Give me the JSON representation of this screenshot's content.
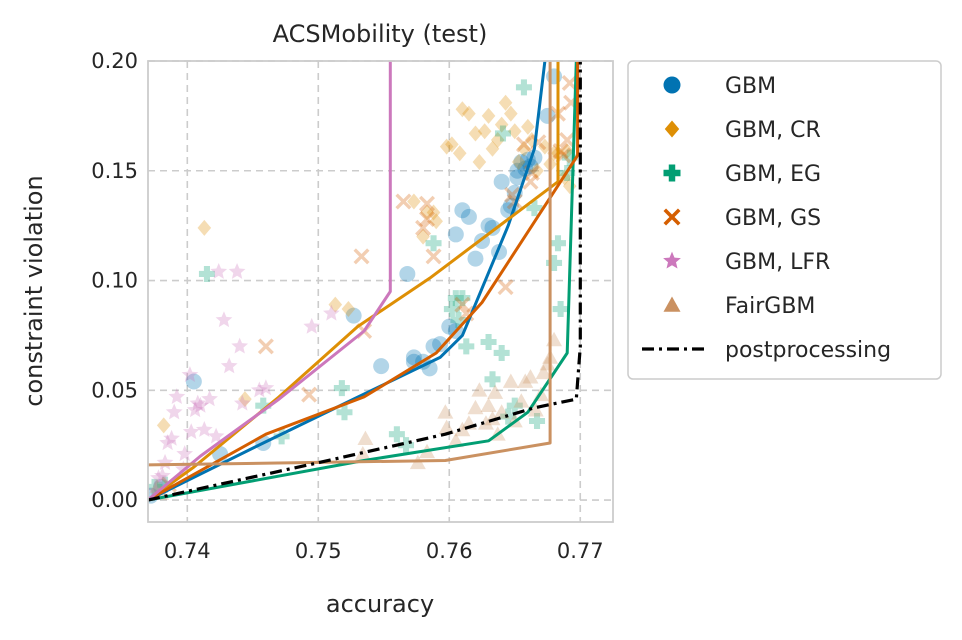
{
  "chart_data": {
    "type": "scatter",
    "title": "ACSMobility (test)",
    "xlabel": "accuracy",
    "ylabel": "constraint violation",
    "xlim": [
      0.737,
      0.7725
    ],
    "ylim": [
      -0.01,
      0.2
    ],
    "xticks": [
      0.74,
      0.75,
      0.76,
      0.77
    ],
    "yticks": [
      0.0,
      0.05,
      0.1,
      0.15,
      0.2
    ],
    "xtick_labels": [
      "0.74",
      "0.75",
      "0.76",
      "0.77"
    ],
    "ytick_labels": [
      "0.00",
      "0.05",
      "0.10",
      "0.15",
      "0.20"
    ],
    "grid": true,
    "legend_position": "outside-right",
    "series": [
      {
        "name": "GBM",
        "color": "#0173b2",
        "marker": "circle",
        "points": [
          [
            0.7372,
            0.002
          ],
          [
            0.738,
            0.006
          ],
          [
            0.7405,
            0.054
          ],
          [
            0.7425,
            0.021
          ],
          [
            0.7458,
            0.026
          ],
          [
            0.7527,
            0.084
          ],
          [
            0.7548,
            0.061
          ],
          [
            0.7568,
            0.103
          ],
          [
            0.7573,
            0.065
          ],
          [
            0.7573,
            0.063
          ],
          [
            0.758,
            0.063
          ],
          [
            0.7585,
            0.06
          ],
          [
            0.7588,
            0.07
          ],
          [
            0.7593,
            0.071
          ],
          [
            0.76,
            0.079
          ],
          [
            0.7605,
            0.077
          ],
          [
            0.7605,
            0.121
          ],
          [
            0.761,
            0.132
          ],
          [
            0.7615,
            0.129
          ],
          [
            0.762,
            0.11
          ],
          [
            0.7625,
            0.118
          ],
          [
            0.763,
            0.125
          ],
          [
            0.7633,
            0.124
          ],
          [
            0.7638,
            0.113
          ],
          [
            0.764,
            0.145
          ],
          [
            0.7645,
            0.132
          ],
          [
            0.7647,
            0.134
          ],
          [
            0.765,
            0.14
          ],
          [
            0.7652,
            0.147
          ],
          [
            0.7652,
            0.15
          ],
          [
            0.7655,
            0.154
          ],
          [
            0.7658,
            0.151
          ],
          [
            0.766,
            0.155
          ],
          [
            0.7662,
            0.152
          ],
          [
            0.7665,
            0.156
          ],
          [
            0.7675,
            0.175
          ],
          [
            0.768,
            0.193
          ]
        ],
        "front": [
          [
            0.737,
            0.0
          ],
          [
            0.7458,
            0.026
          ],
          [
            0.7527,
            0.046
          ],
          [
            0.7593,
            0.065
          ],
          [
            0.761,
            0.075
          ],
          [
            0.7645,
            0.125
          ],
          [
            0.7665,
            0.16
          ],
          [
            0.7673,
            0.2
          ]
        ]
      },
      {
        "name": "GBM, CR",
        "color": "#de8f05",
        "marker": "diamond",
        "points": [
          [
            0.7382,
            0.034
          ],
          [
            0.7413,
            0.124
          ],
          [
            0.7444,
            0.046
          ],
          [
            0.7513,
            0.089
          ],
          [
            0.7523,
            0.087
          ],
          [
            0.7573,
            0.136
          ],
          [
            0.758,
            0.12
          ],
          [
            0.7583,
            0.131
          ],
          [
            0.7588,
            0.131
          ],
          [
            0.759,
            0.127
          ],
          [
            0.7598,
            0.161
          ],
          [
            0.7602,
            0.162
          ],
          [
            0.7608,
            0.158
          ],
          [
            0.761,
            0.178
          ],
          [
            0.7615,
            0.176
          ],
          [
            0.762,
            0.167
          ],
          [
            0.7623,
            0.154
          ],
          [
            0.7627,
            0.168
          ],
          [
            0.763,
            0.175
          ],
          [
            0.7633,
            0.16
          ],
          [
            0.7637,
            0.164
          ],
          [
            0.764,
            0.171
          ],
          [
            0.7643,
            0.181
          ],
          [
            0.7647,
            0.176
          ],
          [
            0.765,
            0.168
          ],
          [
            0.7653,
            0.154
          ],
          [
            0.7657,
            0.16
          ],
          [
            0.766,
            0.17
          ],
          [
            0.7663,
            0.164
          ],
          [
            0.7667,
            0.15
          ],
          [
            0.7673,
            0.161
          ],
          [
            0.7677,
            0.153
          ],
          [
            0.768,
            0.158
          ],
          [
            0.7683,
            0.158
          ],
          [
            0.769,
            0.159
          ],
          [
            0.7688,
            0.147
          ],
          [
            0.7692,
            0.143
          ]
        ],
        "front": [
          [
            0.737,
            0.0
          ],
          [
            0.7405,
            0.015
          ],
          [
            0.747,
            0.047
          ],
          [
            0.753,
            0.079
          ],
          [
            0.7585,
            0.101
          ],
          [
            0.7683,
            0.145
          ],
          [
            0.7683,
            0.2
          ]
        ]
      },
      {
        "name": "GBM, EG",
        "color": "#029e73",
        "marker": "plus",
        "points": [
          [
            0.7375,
            0.006
          ],
          [
            0.7383,
            0.007
          ],
          [
            0.7415,
            0.103
          ],
          [
            0.7458,
            0.043
          ],
          [
            0.7472,
            0.029
          ],
          [
            0.7518,
            0.051
          ],
          [
            0.752,
            0.04
          ],
          [
            0.756,
            0.03
          ],
          [
            0.7567,
            0.025
          ],
          [
            0.7588,
            0.117
          ],
          [
            0.7602,
            0.087
          ],
          [
            0.7605,
            0.092
          ],
          [
            0.7607,
            0.082
          ],
          [
            0.761,
            0.092
          ],
          [
            0.7613,
            0.07
          ],
          [
            0.763,
            0.072
          ],
          [
            0.7633,
            0.055
          ],
          [
            0.764,
            0.067
          ],
          [
            0.7641,
            0.167
          ],
          [
            0.7645,
            0.038
          ],
          [
            0.765,
            0.043
          ],
          [
            0.7657,
            0.188
          ],
          [
            0.7665,
            0.133
          ],
          [
            0.7667,
            0.036
          ],
          [
            0.768,
            0.108
          ],
          [
            0.7683,
            0.117
          ],
          [
            0.7685,
            0.087
          ],
          [
            0.769,
            0.149
          ],
          [
            0.7692,
            0.156
          ]
        ],
        "front": [
          [
            0.737,
            0.0
          ],
          [
            0.7535,
            0.018
          ],
          [
            0.763,
            0.027
          ],
          [
            0.766,
            0.04
          ],
          [
            0.769,
            0.067
          ],
          [
            0.7697,
            0.2
          ]
        ]
      },
      {
        "name": "GBM, GS",
        "color": "#d55e00",
        "marker": "x",
        "points": [
          [
            0.7386,
            0.007
          ],
          [
            0.746,
            0.07
          ],
          [
            0.7493,
            0.048
          ],
          [
            0.7533,
            0.111
          ],
          [
            0.7535,
            0.077
          ],
          [
            0.7565,
            0.136
          ],
          [
            0.758,
            0.124
          ],
          [
            0.7583,
            0.128
          ],
          [
            0.7583,
            0.135
          ],
          [
            0.7588,
            0.111
          ],
          [
            0.761,
            0.089
          ],
          [
            0.7613,
            0.085
          ],
          [
            0.7643,
            0.097
          ],
          [
            0.7648,
            0.139
          ],
          [
            0.765,
            0.136
          ],
          [
            0.7657,
            0.162
          ],
          [
            0.7662,
            0.145
          ],
          [
            0.7663,
            0.149
          ],
          [
            0.7668,
            0.163
          ],
          [
            0.7683,
            0.176
          ],
          [
            0.7685,
            0.159
          ],
          [
            0.7687,
            0.157
          ],
          [
            0.769,
            0.164
          ],
          [
            0.7692,
            0.19
          ],
          [
            0.7693,
            0.181
          ]
        ],
        "front": [
          [
            0.737,
            0.0
          ],
          [
            0.746,
            0.03
          ],
          [
            0.7535,
            0.047
          ],
          [
            0.759,
            0.067
          ],
          [
            0.7625,
            0.09
          ],
          [
            0.7698,
            0.157
          ],
          [
            0.7698,
            0.2
          ]
        ]
      },
      {
        "name": "GBM, LFR",
        "color": "#cc78bc",
        "marker": "star",
        "points": [
          [
            0.7376,
            0.004
          ],
          [
            0.7378,
            0.01
          ],
          [
            0.7381,
            0.011
          ],
          [
            0.7383,
            0.017
          ],
          [
            0.7385,
            0.026
          ],
          [
            0.7388,
            0.028
          ],
          [
            0.739,
            0.04
          ],
          [
            0.7392,
            0.047
          ],
          [
            0.7397,
            0.014
          ],
          [
            0.7398,
            0.021
          ],
          [
            0.7402,
            0.057
          ],
          [
            0.7403,
            0.031
          ],
          [
            0.7406,
            0.041
          ],
          [
            0.7408,
            0.044
          ],
          [
            0.741,
            0.043
          ],
          [
            0.7413,
            0.032
          ],
          [
            0.7417,
            0.046
          ],
          [
            0.7422,
            0.029
          ],
          [
            0.7424,
            0.104
          ],
          [
            0.7428,
            0.082
          ],
          [
            0.7432,
            0.061
          ],
          [
            0.7438,
            0.104
          ],
          [
            0.744,
            0.07
          ],
          [
            0.7442,
            0.044
          ],
          [
            0.7455,
            0.05
          ],
          [
            0.746,
            0.051
          ],
          [
            0.7495,
            0.079
          ],
          [
            0.751,
            0.085
          ]
        ],
        "front": [
          [
            0.737,
            0.0
          ],
          [
            0.741,
            0.02
          ],
          [
            0.747,
            0.046
          ],
          [
            0.7535,
            0.077
          ],
          [
            0.7555,
            0.095
          ],
          [
            0.7555,
            0.2
          ]
        ]
      },
      {
        "name": "FairGBM",
        "color": "#ca9161",
        "marker": "triangle",
        "points": [
          [
            0.7377,
            0.006
          ],
          [
            0.738,
            0.003
          ],
          [
            0.7534,
            0.021
          ],
          [
            0.7536,
            0.028
          ],
          [
            0.7576,
            0.017
          ],
          [
            0.7583,
            0.022
          ],
          [
            0.7597,
            0.04
          ],
          [
            0.7598,
            0.033
          ],
          [
            0.7605,
            0.027
          ],
          [
            0.761,
            0.032
          ],
          [
            0.7615,
            0.035
          ],
          [
            0.762,
            0.042
          ],
          [
            0.7623,
            0.05
          ],
          [
            0.7628,
            0.035
          ],
          [
            0.763,
            0.043
          ],
          [
            0.7633,
            0.037
          ],
          [
            0.7635,
            0.049
          ],
          [
            0.7637,
            0.03
          ],
          [
            0.764,
            0.04
          ],
          [
            0.7647,
            0.054
          ],
          [
            0.765,
            0.036
          ],
          [
            0.7655,
            0.045
          ],
          [
            0.7658,
            0.054
          ],
          [
            0.7662,
            0.056
          ],
          [
            0.7666,
            0.041
          ],
          [
            0.767,
            0.048
          ],
          [
            0.7672,
            0.058
          ],
          [
            0.7675,
            0.062
          ],
          [
            0.7677,
            0.065
          ],
          [
            0.768,
            0.073
          ]
        ],
        "front": [
          [
            0.737,
            0.016
          ],
          [
            0.7597,
            0.018
          ],
          [
            0.7677,
            0.026
          ],
          [
            0.7677,
            0.2
          ]
        ]
      },
      {
        "name": "postprocessing",
        "color": "#000000",
        "marker": "line",
        "points": [],
        "front": [
          [
            0.737,
            0.0
          ],
          [
            0.75,
            0.017
          ],
          [
            0.7597,
            0.03
          ],
          [
            0.7665,
            0.042
          ],
          [
            0.7697,
            0.046
          ],
          [
            0.77,
            0.07
          ],
          [
            0.77,
            0.2
          ]
        ]
      }
    ]
  }
}
